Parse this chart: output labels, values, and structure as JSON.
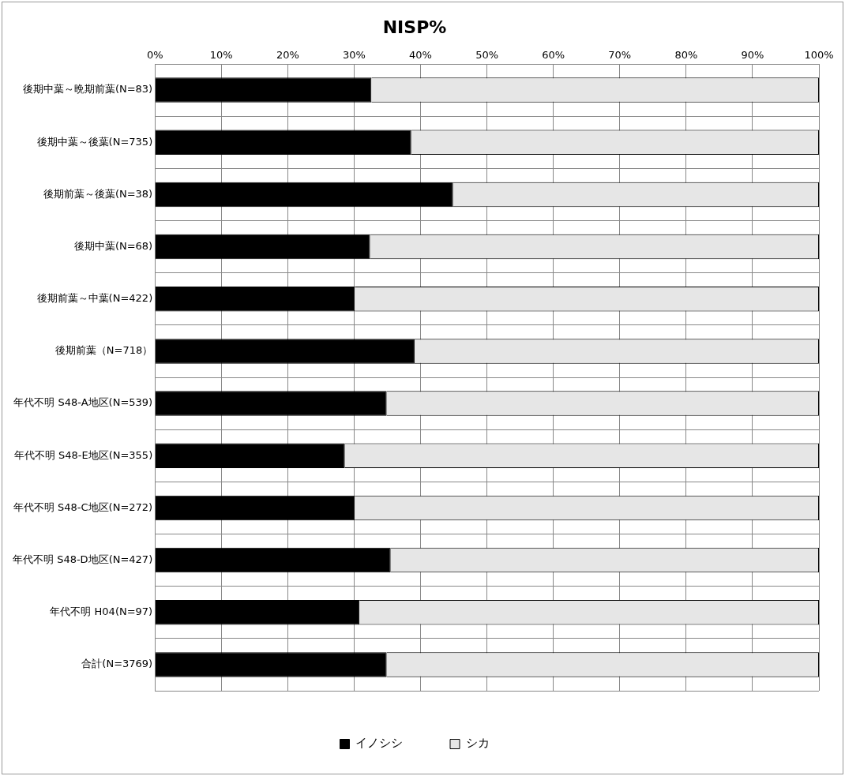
{
  "chart_data": {
    "type": "bar",
    "title": "NISP%",
    "orientation": "horizontal",
    "stacked": true,
    "categories": [
      "後期中葉～晩期前葉(N=83)",
      "後期中葉～後葉(N=735)",
      "後期前葉～後葉(N=38)",
      "後期中葉(N=68)",
      "後期前葉～中葉(N=422)",
      "後期前葉（N=718）",
      "年代不明 S48-A地区(N=539)",
      "年代不明 S48-E地区(N=355)",
      "年代不明 S48-C地区(N=272)",
      "年代不明 S48-D地区(N=427)",
      "年代不明 H04(N=97)",
      "合計(N=3769)"
    ],
    "series": [
      {
        "name": "イノシシ",
        "color": "#000000",
        "values": [
          32.6,
          38.6,
          44.9,
          32.4,
          30.1,
          39.1,
          34.9,
          28.6,
          30.1,
          35.5,
          30.8,
          34.9
        ]
      },
      {
        "name": "シカ",
        "color": "#e6e6e6",
        "values": [
          67.4,
          61.4,
          55.1,
          67.6,
          69.9,
          60.9,
          65.1,
          71.4,
          69.9,
          64.5,
          69.2,
          65.1
        ]
      }
    ],
    "xlim": [
      0,
      100
    ],
    "xticks": [
      {
        "value": 0,
        "label": "0%"
      },
      {
        "value": 10,
        "label": "10%"
      },
      {
        "value": 20,
        "label": "20%"
      },
      {
        "value": 30,
        "label": "30%"
      },
      {
        "value": 40,
        "label": "40%"
      },
      {
        "value": 50,
        "label": "50%"
      },
      {
        "value": 60,
        "label": "60%"
      },
      {
        "value": 70,
        "label": "70%"
      },
      {
        "value": 80,
        "label": "80%"
      },
      {
        "value": 90,
        "label": "90%"
      },
      {
        "value": 100,
        "label": "100%"
      }
    ],
    "grid": true,
    "legend": "bottom"
  }
}
